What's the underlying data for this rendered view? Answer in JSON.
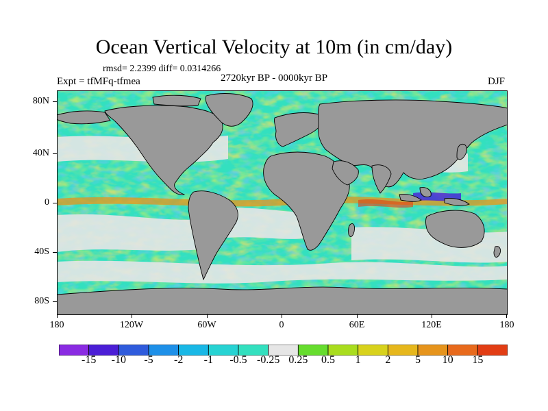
{
  "title": "Ocean Vertical Velocity at 10m (in cm/day)",
  "stats_line": "rmsd= 2.2399 diff= 0.0314266",
  "experiment": "Expt = tfMFq-tfmea",
  "period": "2720kyr BP - 0000kyr BP",
  "season": "DJF",
  "lat_ticks": [
    "80N",
    "40N",
    "0",
    "40S",
    "80S"
  ],
  "lon_ticks": [
    "180",
    "120W",
    "60W",
    "0",
    "60E",
    "120E",
    "180"
  ],
  "colorbar": {
    "labels": [
      "-15",
      "-10",
      "-5",
      "-2",
      "-1",
      "-0.5",
      "-0.25",
      "0.25",
      "0.5",
      "1",
      "2",
      "5",
      "10",
      "15"
    ],
    "colors": [
      "#8a2be2",
      "#4b1ed6",
      "#2f5bdc",
      "#1e90e8",
      "#19b8e6",
      "#27d3d3",
      "#33e0bf",
      "#e6e6e6",
      "#66dd2e",
      "#a9dd1e",
      "#d8d21c",
      "#e6b71c",
      "#e6941c",
      "#e86a1c",
      "#e23d14"
    ]
  },
  "colors": {
    "land": "#999999",
    "ocean_base": "#33e0bf"
  }
}
